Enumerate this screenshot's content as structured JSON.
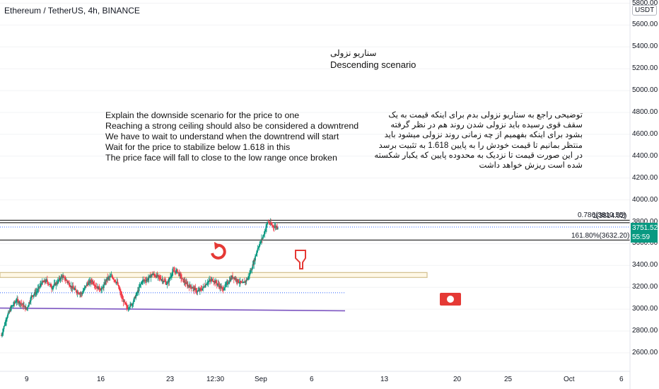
{
  "header": {
    "title": "Ethereum / TetherUS, 4h, BINANCE"
  },
  "currency_badge": "USDT",
  "annotations": {
    "fa_title": "سناریو نزولی",
    "en_title": "Descending scenario",
    "en_lines": [
      "Explain the downside scenario for the price to one",
      "Reaching a strong ceiling should also be considered a downtrend",
      "We have to wait to understand when the downtrend will start",
      "Wait for the price to stabilize below 1.618 in this",
      "The price face will fall to close to the low range once broken"
    ],
    "fa_text": "توضیحی راجع به سناریو نزولی بدم برای اینکه قیمت به یک سقف قوی رسیده باید نزولی شدن روند هم در نظر گرفته بشود برای اینکه بفهمیم از چه زمانی روند نزولی میشود باید منتظر بمانیم تا قیمت خودش را به پایین 1.618 به تثبیت برسد در این صورت قیمت تا نزدیک به محدوده پایین که یکبار شکسته شده است ریزش خواهد داشت"
  },
  "current_price": {
    "value": 3751.52,
    "label": "3751.52",
    "countdown": "55:59",
    "color": "#089981"
  },
  "fib_levels": [
    {
      "label": "0.786(3810.55)",
      "price": 3810.55,
      "extra": "1(3814.02)"
    },
    {
      "label": "161.80%(3632.20)",
      "price": 3632.2
    }
  ],
  "icons": [
    "rotate-arrow-icon",
    "pointing-down-hand-icon",
    "banknote-icon"
  ],
  "colors": {
    "up": "#089981",
    "down": "#f23645",
    "purple": "#7e57c2",
    "box": "#d1bf8e",
    "blue_dotted": "#2962ff"
  },
  "chart_data": {
    "type": "candlestick",
    "title": "Ethereum / TetherUS, 4h, BINANCE",
    "ylim": [
      2500,
      6800
    ],
    "y_ticks": [
      2600,
      2800,
      3000,
      3200,
      3400,
      3600,
      3800,
      4000,
      4200,
      4400,
      4600,
      4800,
      5000,
      5200,
      5400,
      5600,
      5800
    ],
    "y_tick_labels": [
      "2600.00",
      "2800.00",
      "3000.00",
      "3200.00",
      "3400.00",
      "3600.00",
      "3800.00",
      "4000.00",
      "4200.00",
      "4400.00",
      "4600.00",
      "4800.00",
      "5000.00",
      "5200.00",
      "5400.00",
      "5600.00",
      "5800.00"
    ],
    "x_tick_labels": [
      "9",
      "16",
      "23",
      "12:30",
      "Sep",
      "6",
      "13",
      "20",
      "25",
      "Oct",
      "6"
    ],
    "close_path": [
      2760,
      2920,
      3020,
      3080,
      3050,
      3000,
      3120,
      3160,
      3240,
      3260,
      3200,
      3240,
      3300,
      3260,
      3200,
      3160,
      3140,
      3230,
      3260,
      3200,
      3180,
      3280,
      3300,
      3240,
      3100,
      3010,
      3050,
      3150,
      3260,
      3270,
      3320,
      3300,
      3270,
      3230,
      3340,
      3350,
      3270,
      3220,
      3200,
      3160,
      3190,
      3250,
      3270,
      3230,
      3180,
      3240,
      3300,
      3260,
      3230,
      3280,
      3400,
      3560,
      3660,
      3800,
      3760,
      3751.52
    ],
    "horizontal_levels": [
      {
        "price": 3814.02,
        "style": "solid"
      },
      {
        "price": 3810.55,
        "style": "solid"
      },
      {
        "price": 3632.2,
        "style": "solid"
      },
      {
        "price": 3751.52,
        "style": "dotted"
      },
      {
        "price": 3150,
        "style": "dotted"
      },
      {
        "price": 3000,
        "style": "solid"
      }
    ],
    "zone": {
      "from": 3290,
      "to": 3335
    }
  }
}
